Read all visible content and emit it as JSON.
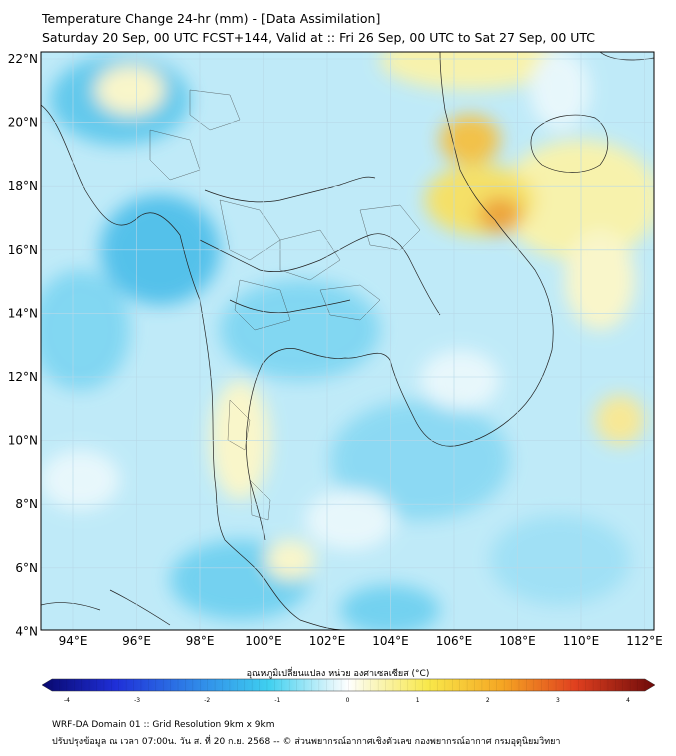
{
  "title": "Temperature Change 24-hr (mm) - [Data Assimilation]",
  "subtitle": "Saturday 20 Sep, 00 UTC FCST+144, Valid at :: Fri 26 Sep, 00 UTC to Sat 27 Sep, 00 UTC",
  "lat_labels": [
    "22°N",
    "20°N",
    "18°N",
    "16°N",
    "14°N",
    "12°N",
    "10°N",
    "8°N",
    "6°N",
    "4°N"
  ],
  "lon_labels": [
    "94°E",
    "96°E",
    "98°E",
    "100°E",
    "102°E",
    "104°E",
    "106°E",
    "108°E",
    "110°E",
    "112°E"
  ],
  "colorbar": {
    "title": "อุณหภูมิเปลี่ยนแปลง หน่วย องศาเซลเซียส (°C)",
    "ticks": [
      "-4",
      "-3",
      "-2",
      "-1",
      "0",
      "1",
      "2",
      "3",
      "4"
    ],
    "range": [
      -4,
      4
    ]
  },
  "footer": {
    "line1": "WRF-DA Domain 01 :: Grid Resolution 9km x 9km",
    "line2": "ปรับปรุงข้อมูล ณ เวลา 07:00น. วัน ส. ที่ 20 ก.ย. 2568 -- © ส่วนพยากรณ์อากาศเชิงตัวเลข กองพยากรณ์อากาศ กรมอุตุนิยมวิทยา"
  },
  "colors": {
    "warm": "#f5a623",
    "cool": "#5ec8ec",
    "neutral": "#ffffff"
  }
}
